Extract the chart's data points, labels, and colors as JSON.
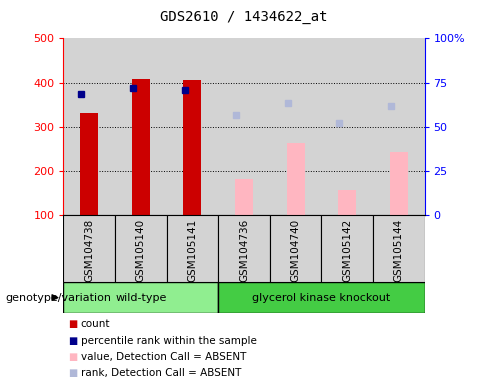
{
  "title": "GDS2610 / 1434622_at",
  "samples": [
    "GSM104738",
    "GSM105140",
    "GSM105141",
    "GSM104736",
    "GSM104740",
    "GSM105142",
    "GSM105144"
  ],
  "bar_bg_color": "#d3d3d3",
  "ylim_left": [
    100,
    500
  ],
  "ylim_right": [
    0,
    100
  ],
  "yticks_left": [
    100,
    200,
    300,
    400,
    500
  ],
  "yticks_right": [
    0,
    25,
    50,
    75,
    100
  ],
  "yticklabels_right": [
    "0",
    "25",
    "50",
    "75",
    "100%"
  ],
  "count_values": [
    330,
    407,
    406,
    null,
    null,
    null,
    null
  ],
  "count_color": "#cc0000",
  "percentile_values": [
    374,
    387,
    384,
    null,
    null,
    null,
    null
  ],
  "percentile_color": "#00008b",
  "absent_value_bars": [
    null,
    null,
    null,
    182,
    263,
    156,
    242
  ],
  "absent_value_color": "#ffb6c1",
  "absent_rank_dots": [
    null,
    null,
    null,
    327,
    354,
    308,
    348
  ],
  "absent_rank_color": "#b0b8d8",
  "wt_color": "#90ee90",
  "ko_color": "#44cc44",
  "genotype_label": "genotype/variation",
  "legend_items": [
    {
      "label": "count",
      "color": "#cc0000"
    },
    {
      "label": "percentile rank within the sample",
      "color": "#00008b"
    },
    {
      "label": "value, Detection Call = ABSENT",
      "color": "#ffb6c1"
    },
    {
      "label": "rank, Detection Call = ABSENT",
      "color": "#b0b8d8"
    }
  ],
  "grid_color": "black",
  "grid_style": "dotted",
  "bar_width": 0.35
}
